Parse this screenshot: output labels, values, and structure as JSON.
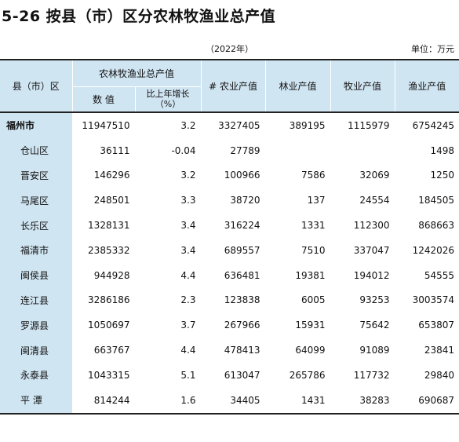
{
  "title": "5-26  按县（市）区分农林牧渔业总产值",
  "year": "（2022年）",
  "unit": "单位：万元",
  "headers": {
    "region": "县（市）区",
    "total_group": "农林牧渔业总产值",
    "value": "数  值",
    "growth_line1": "比上年增长",
    "growth_line2": "（%）",
    "agri": "#  农业产值",
    "forest": "林业产值",
    "livestock": "牧业产值",
    "fishery": "渔业产值"
  },
  "rows": [
    {
      "name": "福州市",
      "total": "11947510",
      "growth": "3.2",
      "agri": "3327405",
      "forest": "389195",
      "livestock": "1115979",
      "fishery": "6754245"
    },
    {
      "name": "仓山区",
      "total": "36111",
      "growth": "-0.04",
      "agri": "27789",
      "forest": "",
      "livestock": "",
      "fishery": "1498"
    },
    {
      "name": "晋安区",
      "total": "146296",
      "growth": "3.2",
      "agri": "100966",
      "forest": "7586",
      "livestock": "32069",
      "fishery": "1250"
    },
    {
      "name": "马尾区",
      "total": "248501",
      "growth": "3.3",
      "agri": "38720",
      "forest": "137",
      "livestock": "24554",
      "fishery": "184505"
    },
    {
      "name": "长乐区",
      "total": "1328131",
      "growth": "3.4",
      "agri": "316224",
      "forest": "1331",
      "livestock": "112300",
      "fishery": "868663"
    },
    {
      "name": "福清市",
      "total": "2385332",
      "growth": "3.4",
      "agri": "689557",
      "forest": "7510",
      "livestock": "337047",
      "fishery": "1242026"
    },
    {
      "name": "闽侯县",
      "total": "944928",
      "growth": "4.4",
      "agri": "636481",
      "forest": "19381",
      "livestock": "194012",
      "fishery": "54555"
    },
    {
      "name": "连江县",
      "total": "3286186",
      "growth": "2.3",
      "agri": "123838",
      "forest": "6005",
      "livestock": "93253",
      "fishery": "3003574"
    },
    {
      "name": "罗源县",
      "total": "1050697",
      "growth": "3.7",
      "agri": "267966",
      "forest": "15931",
      "livestock": "75642",
      "fishery": "653807"
    },
    {
      "name": "闽清县",
      "total": "663767",
      "growth": "4.4",
      "agri": "478413",
      "forest": "64099",
      "livestock": "91089",
      "fishery": "23841"
    },
    {
      "name": "永泰县",
      "total": "1043315",
      "growth": "5.1",
      "agri": "613047",
      "forest": "265786",
      "livestock": "117732",
      "fishery": "29840"
    },
    {
      "name": "平    潭",
      "total": "814244",
      "growth": "1.6",
      "agri": "34405",
      "forest": "1431",
      "livestock": "38283",
      "fishery": "690687"
    }
  ]
}
